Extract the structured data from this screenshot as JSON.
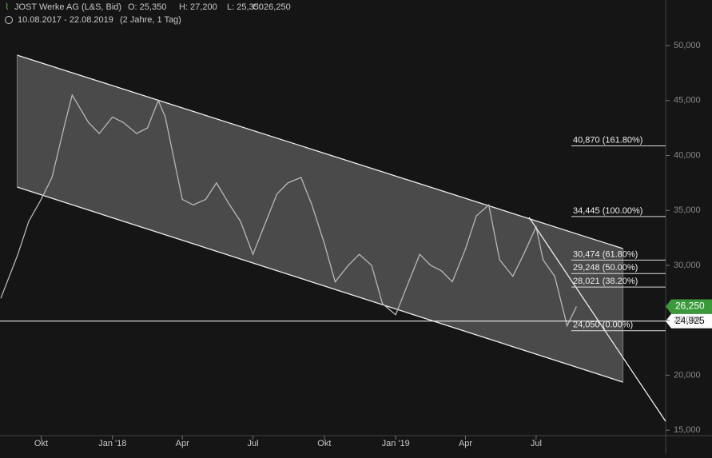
{
  "header": {
    "title": "JOST Werke AG (L&S, Bid)",
    "open": "O: 25,350",
    "high": "H: 27,200",
    "low": "L: 25,350",
    "close": "C: 26,250",
    "range": "10.08.2017 - 22.08.2019",
    "period": "(2 Jahre, 1 Tag)"
  },
  "chart_data": {
    "type": "line",
    "color": "#b8b8b8",
    "x": [
      "2017-08-10",
      "2017-09-01",
      "2017-09-15",
      "2017-10-01",
      "2017-10-15",
      "2017-11-01",
      "2017-11-10",
      "2017-12-01",
      "2017-12-15",
      "2018-01-01",
      "2018-01-15",
      "2018-02-01",
      "2018-02-15",
      "2018-03-01",
      "2018-03-10",
      "2018-04-01",
      "2018-04-15",
      "2018-05-01",
      "2018-05-15",
      "2018-06-01",
      "2018-06-15",
      "2018-07-01",
      "2018-07-15",
      "2018-08-01",
      "2018-08-15",
      "2018-09-01",
      "2018-09-15",
      "2018-10-01",
      "2018-10-15",
      "2018-11-01",
      "2018-11-15",
      "2018-12-01",
      "2018-12-15",
      "2019-01-01",
      "2019-01-15",
      "2019-02-01",
      "2019-02-15",
      "2019-03-01",
      "2019-03-15",
      "2019-04-01",
      "2019-04-15",
      "2019-05-01",
      "2019-05-15",
      "2019-06-01",
      "2019-06-15",
      "2019-07-01",
      "2019-07-10",
      "2019-07-25",
      "2019-08-10",
      "2019-08-22"
    ],
    "values": [
      27000,
      31000,
      34000,
      36000,
      38000,
      43000,
      45500,
      43000,
      42000,
      43500,
      43000,
      42000,
      42500,
      45000,
      43500,
      36000,
      35500,
      36000,
      37500,
      35500,
      34000,
      31000,
      33500,
      36500,
      37500,
      38000,
      35500,
      32000,
      28500,
      30000,
      31000,
      30000,
      26500,
      25500,
      28000,
      31000,
      30000,
      29500,
      28500,
      31500,
      34500,
      35500,
      30500,
      29000,
      31000,
      33500,
      30500,
      29000,
      24500,
      26250
    ],
    "xlim": [
      "2017-08-10",
      "2019-12-15"
    ],
    "xticks": [
      {
        "value": "2017-10-01",
        "label": "Okt"
      },
      {
        "value": "2018-01-01",
        "label": "Jan '18"
      },
      {
        "value": "2018-04-01",
        "label": "Apr"
      },
      {
        "value": "2018-07-01",
        "label": "Jul"
      },
      {
        "value": "2018-10-01",
        "label": "Okt"
      },
      {
        "value": "2019-01-01",
        "label": "Jan '19"
      },
      {
        "value": "2019-04-01",
        "label": "Apr"
      },
      {
        "value": "2019-07-01",
        "label": "Jul"
      }
    ],
    "ylim": [
      14500,
      54150
    ],
    "yticks": [
      {
        "value": 15000,
        "label": "15,000"
      },
      {
        "value": 20000,
        "label": "20,000"
      },
      {
        "value": 25000,
        "label": "25,000"
      },
      {
        "value": 30000,
        "label": "30,000"
      },
      {
        "value": 35000,
        "label": "35,000"
      },
      {
        "value": 40000,
        "label": "40,000"
      },
      {
        "value": 45000,
        "label": "45,000"
      },
      {
        "value": 50000,
        "label": "50,000"
      }
    ],
    "channel": {
      "x": [
        "2017-08-31",
        "2019-10-21"
      ],
      "upper": [
        49130,
        31520
      ],
      "lower": [
        37124,
        19369
      ]
    },
    "trendline": {
      "x": [
        "2019-06-22",
        "2019-12-15"
      ],
      "values": [
        34358,
        15801
      ]
    },
    "fib_levels": [
      {
        "value": 40870,
        "label": "40,870 (161.80%)"
      },
      {
        "value": 34445,
        "label": "34,445 (100.00%)"
      },
      {
        "value": 30474,
        "label": "30,474 (61.80%)"
      },
      {
        "value": 29248,
        "label": "29,248 (50.00%)"
      },
      {
        "value": 28021,
        "label": "28,021 (38.20%)"
      },
      {
        "value": 24050,
        "label": "24,050 (0.00%)"
      }
    ],
    "price_labels": [
      {
        "value": 26250,
        "label": "26,250",
        "color": "#3a9a3a"
      },
      {
        "value": 24925,
        "label": "24,925",
        "color": "#ffffff"
      }
    ]
  }
}
